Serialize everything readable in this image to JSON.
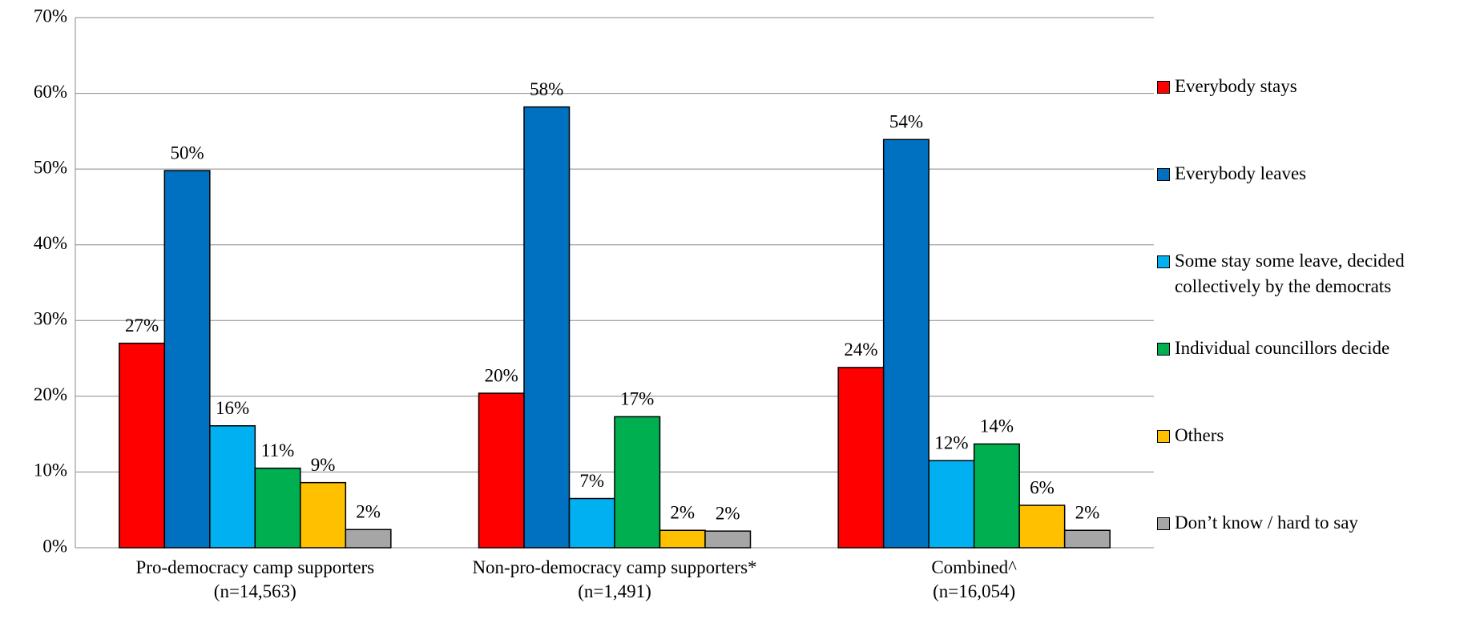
{
  "chart_data": {
    "type": "bar",
    "categories": [
      "Pro-democracy camp supporters\n(n=14,563)",
      "Non-pro-democracy camp supporters*\n(n=1,491)",
      "Combined^\n(n=16,054)"
    ],
    "series": [
      {
        "name": "Everybody stays",
        "color": "#ff0000",
        "values": [
          27.0,
          20.4,
          23.8
        ],
        "value_labels": [
          "27%",
          "20%",
          "24%"
        ]
      },
      {
        "name": "Everybody leaves",
        "color": "#0070c0",
        "values": [
          49.8,
          58.2,
          53.9
        ],
        "value_labels": [
          "50%",
          "58%",
          "54%"
        ]
      },
      {
        "name": "Some stay some leave, decided collectively by the democrats",
        "color": "#00b0f0",
        "values": [
          16.1,
          6.5,
          11.5
        ],
        "value_labels": [
          "16%",
          "7%",
          "12%"
        ]
      },
      {
        "name": "Individual councillors decide",
        "color": "#00b050",
        "values": [
          10.5,
          17.3,
          13.7
        ],
        "value_labels": [
          "11%",
          "17%",
          "14%"
        ]
      },
      {
        "name": "Others",
        "color": "#ffc000",
        "values": [
          8.6,
          2.3,
          5.6
        ],
        "value_labels": [
          "9%",
          "2%",
          "6%"
        ]
      },
      {
        "name": "Don’t know / hard to say",
        "color": "#a6a6a6",
        "values": [
          2.4,
          2.2,
          2.3
        ],
        "value_labels": [
          "2%",
          "2%",
          "2%"
        ]
      }
    ],
    "ylim": [
      0,
      70
    ],
    "yticks": [
      {
        "value": 0,
        "label": "0%"
      },
      {
        "value": 10,
        "label": "10%"
      },
      {
        "value": 20,
        "label": "20%"
      },
      {
        "value": 30,
        "label": "30%"
      },
      {
        "value": 40,
        "label": "40%"
      },
      {
        "value": 50,
        "label": "50%"
      },
      {
        "value": 60,
        "label": "60%"
      },
      {
        "value": 70,
        "label": "70%"
      }
    ],
    "grid": true,
    "legend": "right"
  }
}
